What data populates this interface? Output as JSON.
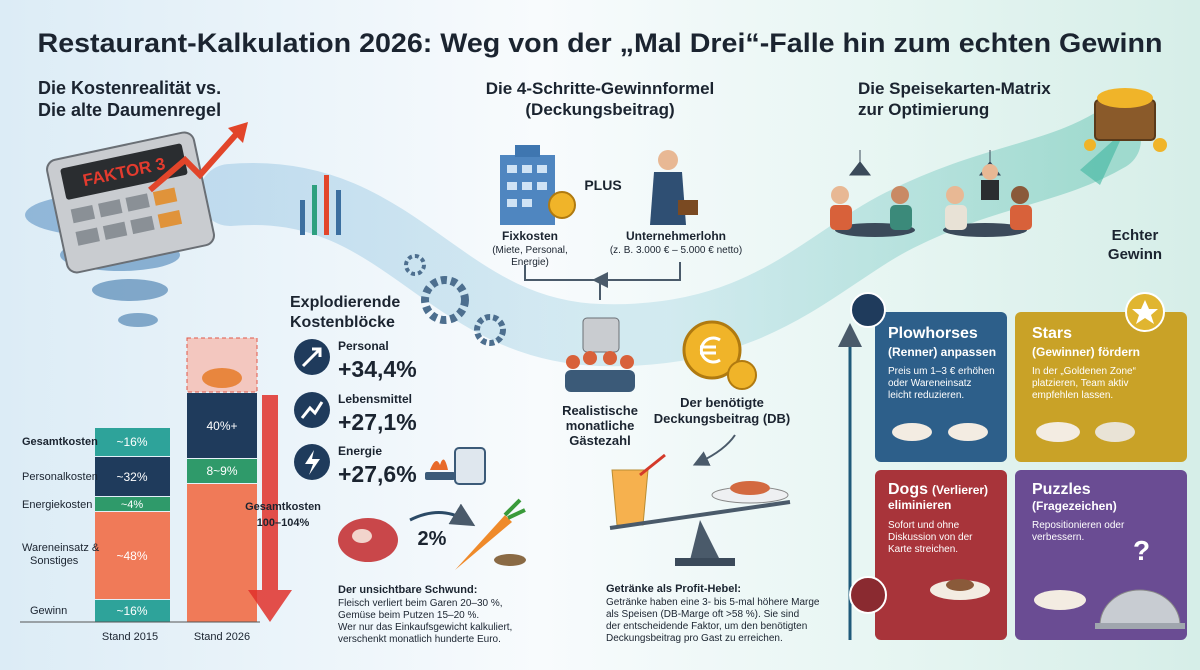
{
  "title": "Restaurant-Kalkulation 2026: Weg von der „Mal Drei“-Falle hin zum echten Gewinn",
  "left": {
    "heading": [
      "Die Kostenrealität vs.",
      "Die alte Daumenregel"
    ],
    "calculator": "FAKTOR 3",
    "cost_chart": {
      "row_labels": [
        "Gesamtkosten",
        "Personalkosten",
        "Energiekosten",
        "Wareneinsatz &",
        "Sonstiges",
        "Gewinn"
      ],
      "stand_2015": [
        "~16%",
        "~32%",
        "~4%",
        "~48%",
        "~16%"
      ],
      "stand_2026": [
        "40%+",
        "8~9%"
      ],
      "total_2026": [
        "Gesamtkosten",
        "100–104%"
      ],
      "columns": [
        "Stand 2015",
        "Stand 2026"
      ]
    },
    "cost_blocks": {
      "heading": [
        "Explodierende",
        "Kostenblöcke"
      ],
      "items": [
        {
          "label": "Personal",
          "value": "+34,4%"
        },
        {
          "label": "Lebensmittel",
          "value": "+27,1%"
        },
        {
          "label": "Energie",
          "value": "+27,6%"
        }
      ]
    },
    "shrink": {
      "badge": "2%",
      "title": "Der unsichtbare Schwund:",
      "lines": [
        "Fleisch verliert beim Garen 20–30 %,",
        "Gemüse beim Putzen 15–20 %.",
        "Wer nur das Einkaufsgewicht kalkuliert,",
        "verschenkt monatlich hunderte Euro."
      ]
    }
  },
  "middle": {
    "heading": [
      "Die 4-Schritte-Gewinnformel",
      "(Deckungsbeitrag)"
    ],
    "plus": "PLUS",
    "fixkosten": {
      "title": "Fixkosten",
      "lines": [
        "(Miete, Personal,",
        "Energie)"
      ]
    },
    "unternehmerlohn": {
      "title": "Unternehmerlohn",
      "note": "(z. B. 3.000 € – 5.000 € netto)"
    },
    "gaeste": [
      "Realistische",
      "monatliche",
      "Gästezahl"
    ],
    "db": [
      "Der benötigte",
      "Deckungsbeitrag (DB)"
    ],
    "drinks": {
      "title": "Getränke als Profit-Hebel:",
      "lines": [
        "Getränke haben eine 3- bis 5-mal höhere Marge",
        "als Speisen (DB-Marge oft >58 %). Sie sind",
        "der entscheidende Faktor, um den benötigten",
        "Deckungsbeitrag pro Gast zu erreichen."
      ]
    }
  },
  "right": {
    "heading": [
      "Die Speisekarten-Matrix",
      "zur Optimierung"
    ],
    "gewinn": [
      "Echter",
      "Gewinn"
    ],
    "quadrants": [
      {
        "title": "Plowhorses",
        "subtitle": [
          "(Renner) anpassen"
        ],
        "text": [
          "Preis um 1–3 € erhöhen",
          "oder Wareneinsatz",
          "leicht reduzieren."
        ]
      },
      {
        "title": "Stars",
        "subtitle": [
          "(Gewinner) fördern"
        ],
        "text": [
          "In der „Goldenen Zone“",
          "platzieren, Team aktiv",
          "empfehlen lassen."
        ]
      },
      {
        "title": "Dogs",
        "subtitle": [
          "(Verlierer)",
          "eliminieren"
        ],
        "text": [
          "Sofort und ohne",
          "Diskussion von der",
          "Karte streichen."
        ]
      },
      {
        "title": "Puzzles",
        "subtitle": [
          "(Fragezeichen)"
        ],
        "text": [
          "Repositionieren oder",
          "verbessern."
        ]
      }
    ]
  }
}
